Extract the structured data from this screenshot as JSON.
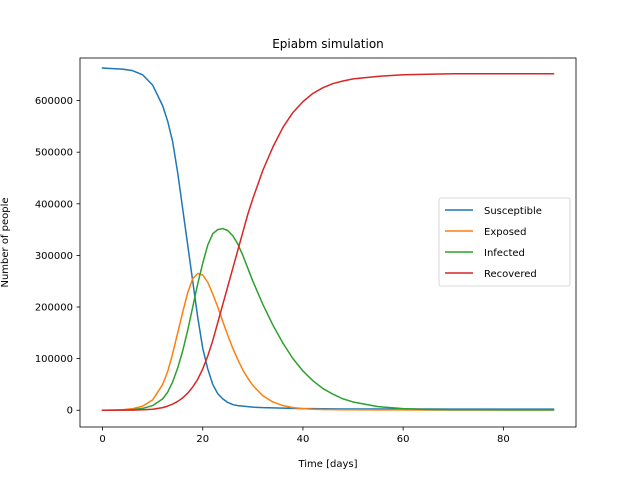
{
  "chart_data": {
    "type": "line",
    "title": "Epiabm simulation",
    "xlabel": "Time [days]",
    "ylabel": "Number of people",
    "xlim": [
      -4.5,
      94.5
    ],
    "ylim": [
      -32500,
      682500
    ],
    "xticks": [
      0,
      20,
      40,
      60,
      80
    ],
    "xtick_labels": [
      "0",
      "20",
      "40",
      "60",
      "80"
    ],
    "yticks": [
      0,
      100000,
      200000,
      300000,
      400000,
      500000,
      600000
    ],
    "ytick_labels": [
      "0",
      "100000",
      "200000",
      "300000",
      "400000",
      "500000",
      "600000"
    ],
    "grid": false,
    "legend_position": "center-right",
    "x": [
      0,
      2,
      4,
      6,
      8,
      10,
      12,
      13,
      14,
      15,
      16,
      17,
      18,
      19,
      20,
      21,
      22,
      23,
      24,
      25,
      26,
      27,
      28,
      29,
      30,
      32,
      34,
      36,
      38,
      40,
      42,
      44,
      46,
      48,
      50,
      55,
      60,
      65,
      70,
      75,
      80,
      85,
      90
    ],
    "series": [
      {
        "name": "Susceptible",
        "color": "#1f77b4",
        "values": [
          663000,
          662000,
          661000,
          658000,
          650000,
          630000,
          590000,
          560000,
          520000,
          460000,
          390000,
          320000,
          250000,
          180000,
          120000,
          80000,
          50000,
          32000,
          22000,
          15000,
          11000,
          9000,
          8000,
          7000,
          6000,
          5000,
          4500,
          4000,
          3500,
          3000,
          3000,
          2800,
          2600,
          2500,
          2500,
          2400,
          2300,
          2300,
          2200,
          2200,
          2200,
          2200,
          2200
        ]
      },
      {
        "name": "Exposed",
        "color": "#ff7f0e",
        "values": [
          0,
          300,
          1000,
          3000,
          8000,
          20000,
          50000,
          75000,
          110000,
          150000,
          190000,
          228000,
          255000,
          265000,
          262000,
          248000,
          225000,
          200000,
          172000,
          145000,
          120000,
          98000,
          78000,
          62000,
          48000,
          28000,
          16000,
          9000,
          5000,
          3000,
          2000,
          1500,
          1200,
          1000,
          900,
          700,
          600,
          500,
          500,
          500,
          500,
          500,
          500
        ]
      },
      {
        "name": "Infected",
        "color": "#2ca02c",
        "values": [
          0,
          100,
          400,
          1200,
          3500,
          9000,
          22000,
          35000,
          55000,
          82000,
          115000,
          155000,
          200000,
          245000,
          285000,
          320000,
          342000,
          350000,
          352000,
          348000,
          338000,
          322000,
          300000,
          275000,
          250000,
          205000,
          165000,
          130000,
          100000,
          76000,
          57000,
          42000,
          31000,
          22000,
          16000,
          7000,
          3000,
          1500,
          1000,
          800,
          700,
          600,
          600
        ]
      },
      {
        "name": "Recovered",
        "color": "#d62728",
        "values": [
          0,
          0,
          100,
          300,
          800,
          2000,
          5000,
          8000,
          12000,
          17000,
          24000,
          33000,
          45000,
          60000,
          80000,
          105000,
          135000,
          170000,
          205000,
          240000,
          275000,
          310000,
          345000,
          380000,
          410000,
          465000,
          510000,
          548000,
          577000,
          598000,
          614000,
          625000,
          633000,
          638000,
          642000,
          647000,
          650000,
          651000,
          652000,
          652000,
          652000,
          652000,
          652000
        ]
      }
    ]
  }
}
